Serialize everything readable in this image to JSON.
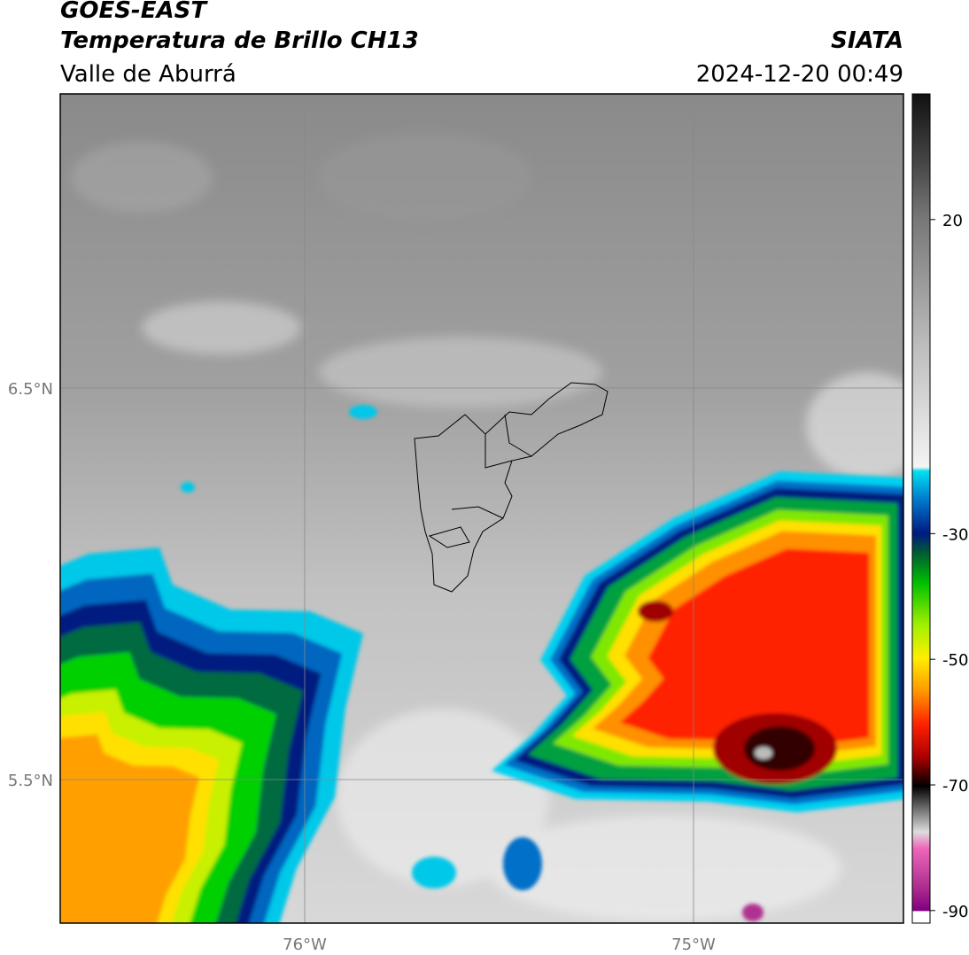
{
  "header": {
    "title": "GOES-EAST",
    "subtitle": "Temperatura de Brillo CH13",
    "region": "Valle de Aburrá",
    "source": "SIATA",
    "datetime": "2024-12-20 00:49"
  },
  "map": {
    "lat_labels": [
      "6.5°N",
      "5.5°N"
    ],
    "lon_labels": [
      "76°W",
      "75°W"
    ]
  },
  "colorbar": {
    "range": [
      -92,
      40
    ],
    "ticks": [
      20,
      -30,
      -50,
      -70,
      -90
    ]
  }
}
